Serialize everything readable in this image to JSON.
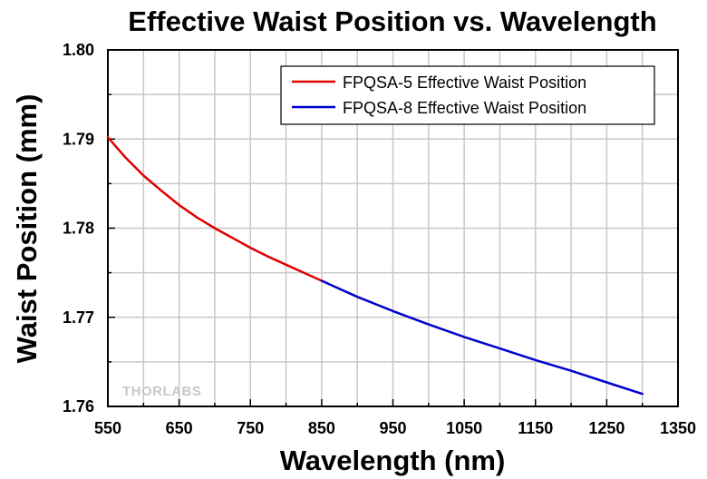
{
  "chart_data": {
    "type": "line",
    "title": "Effective Waist Position vs. Wavelength",
    "xlabel": "Wavelength (nm)",
    "ylabel": "Waist Position (mm)",
    "xlim": [
      550,
      1350
    ],
    "ylim": [
      1.76,
      1.8
    ],
    "xticks": [
      "550",
      "650",
      "750",
      "850",
      "950",
      "1050",
      "1150",
      "1250",
      "1350"
    ],
    "yticks": [
      "1.76",
      "1.77",
      "1.78",
      "1.79",
      "1.80"
    ],
    "grid": true,
    "legend_position": "top-right",
    "series": [
      {
        "name": "FPQSA-5 Effective Waist Position",
        "color": "#e00000",
        "x": [
          550,
          575,
          600,
          625,
          650,
          675,
          700,
          725,
          750,
          775,
          800,
          825,
          850
        ],
        "y": [
          1.7902,
          1.7879,
          1.7859,
          1.7842,
          1.7826,
          1.7812,
          1.78,
          1.7789,
          1.7778,
          1.7768,
          1.7759,
          1.775,
          1.7741
        ]
      },
      {
        "name": "FPQSA-8 Effective Waist Position",
        "color": "#0000cc",
        "x": [
          850,
          900,
          950,
          1000,
          1050,
          1100,
          1150,
          1200,
          1250,
          1300
        ],
        "y": [
          1.7741,
          1.7723,
          1.7707,
          1.7692,
          1.7678,
          1.7665,
          1.7652,
          1.764,
          1.7627,
          1.7614
        ]
      }
    ]
  },
  "watermark": "THORLABS"
}
